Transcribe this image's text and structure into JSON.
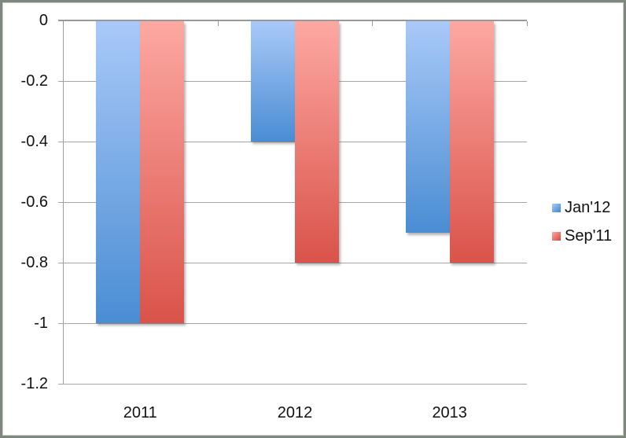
{
  "chart_data": {
    "type": "bar",
    "title": "",
    "xlabel": "",
    "ylabel": "",
    "categories": [
      "2011",
      "2012",
      "2013"
    ],
    "series": [
      {
        "name": "Jan'12",
        "values": [
          -1,
          -0.4,
          -0.7
        ],
        "color_top": "#a9c9f8",
        "color_bottom": "#4a8dd3"
      },
      {
        "name": "Sep'11",
        "values": [
          -1,
          -0.8,
          -0.8
        ],
        "color_top": "#fda8a2",
        "color_bottom": "#d9534a"
      }
    ],
    "ylim": [
      -1.2,
      0
    ],
    "yticks": [
      0,
      -0.2,
      -0.4,
      -0.6,
      -0.8,
      -1,
      -1.2
    ],
    "ytick_labels": [
      "0",
      "-0.2",
      "-0.4",
      "-0.6",
      "-0.8",
      "-1",
      "-1.2"
    ],
    "grid": true,
    "legend_position": "right"
  },
  "colors": {
    "gridline": "#a5a5a5",
    "zero_axis": "#989898",
    "frame_border": "#7e887e",
    "text": "#111111"
  }
}
